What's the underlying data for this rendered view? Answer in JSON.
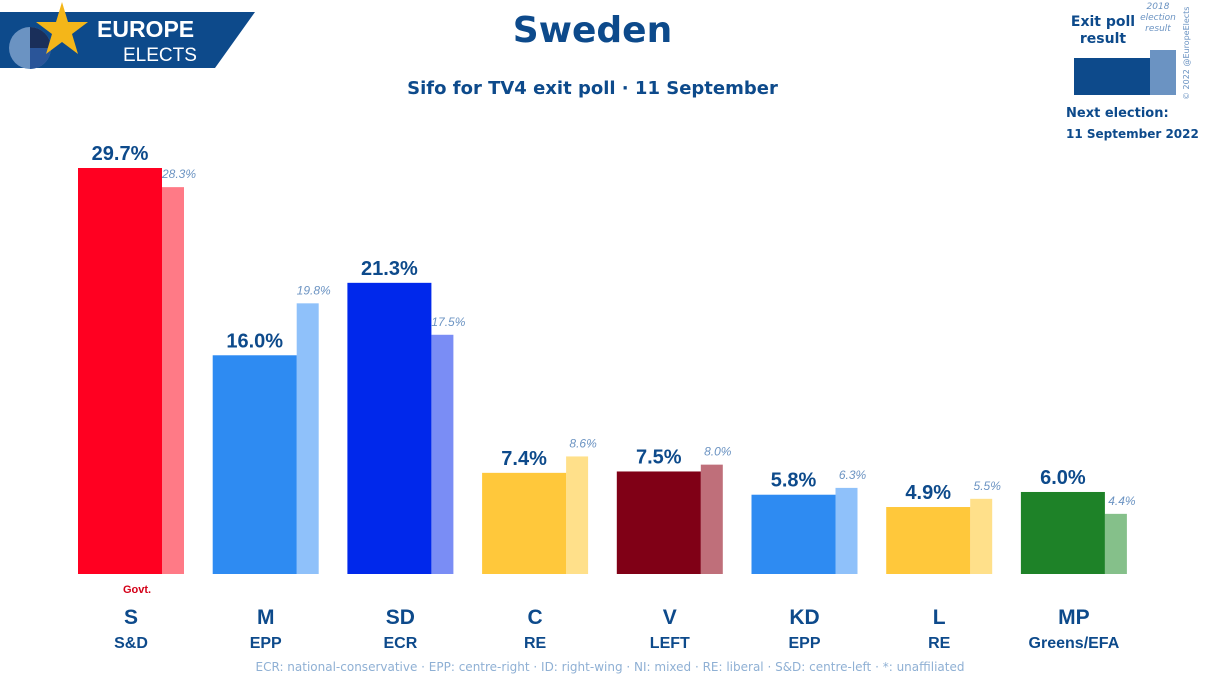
{
  "logo": {
    "line1": "EUROPE",
    "line2": "ELECTS"
  },
  "title": "Sweden",
  "subtitle": "Sifo for TV4 exit poll · 11 September",
  "legend": {
    "current_label": "Exit poll result",
    "previous_label": "2018 election result",
    "next_election_label": "Next election:",
    "next_election_date": "11 September 2022",
    "copyright": "© 2022 @EuropeElects"
  },
  "footnote": "ECR: national-conservative · EPP: centre-right · ID: right-wing · NI: mixed · RE: liberal · S&D: centre-left · *: unaffiliated",
  "chart_data": {
    "type": "bar",
    "categories": [
      "S",
      "M",
      "SD",
      "C",
      "V",
      "KD",
      "L",
      "MP"
    ],
    "groups": [
      "S&D",
      "EPP",
      "ECR",
      "RE",
      "LEFT",
      "EPP",
      "RE",
      "Greens/EFA"
    ],
    "value_labels": [
      "29.7%",
      "16.0%",
      "21.3%",
      "7.4%",
      "7.5%",
      "5.8%",
      "4.9%",
      "6.0%"
    ],
    "previous_labels": [
      "28.3%",
      "19.8%",
      "17.5%",
      "8.6%",
      "8.0%",
      "6.3%",
      "5.5%",
      "4.4%"
    ],
    "annotation": "Govt.",
    "annotation_index": 0,
    "series": [
      {
        "values": [
          29.7,
          16.0,
          21.3,
          7.4,
          7.5,
          5.8,
          4.9,
          6.0
        ],
        "colors": [
          "#ff0021",
          "#2e8bf2",
          "#0028eb",
          "#ffc83b",
          "#800016",
          "#2e8bf2",
          "#ffc83b",
          "#1e8228"
        ]
      },
      {
        "values": [
          28.3,
          19.8,
          17.5,
          8.6,
          8.0,
          6.3,
          5.5,
          4.4
        ],
        "colors": [
          "#ff7a86",
          "#8fc1fa",
          "#7a8df5",
          "#ffe08a",
          "#bf6f7a",
          "#8fc1fa",
          "#ffe08a",
          "#85c08a"
        ]
      }
    ],
    "ylim": [
      0,
      30
    ],
    "grid": false
  }
}
